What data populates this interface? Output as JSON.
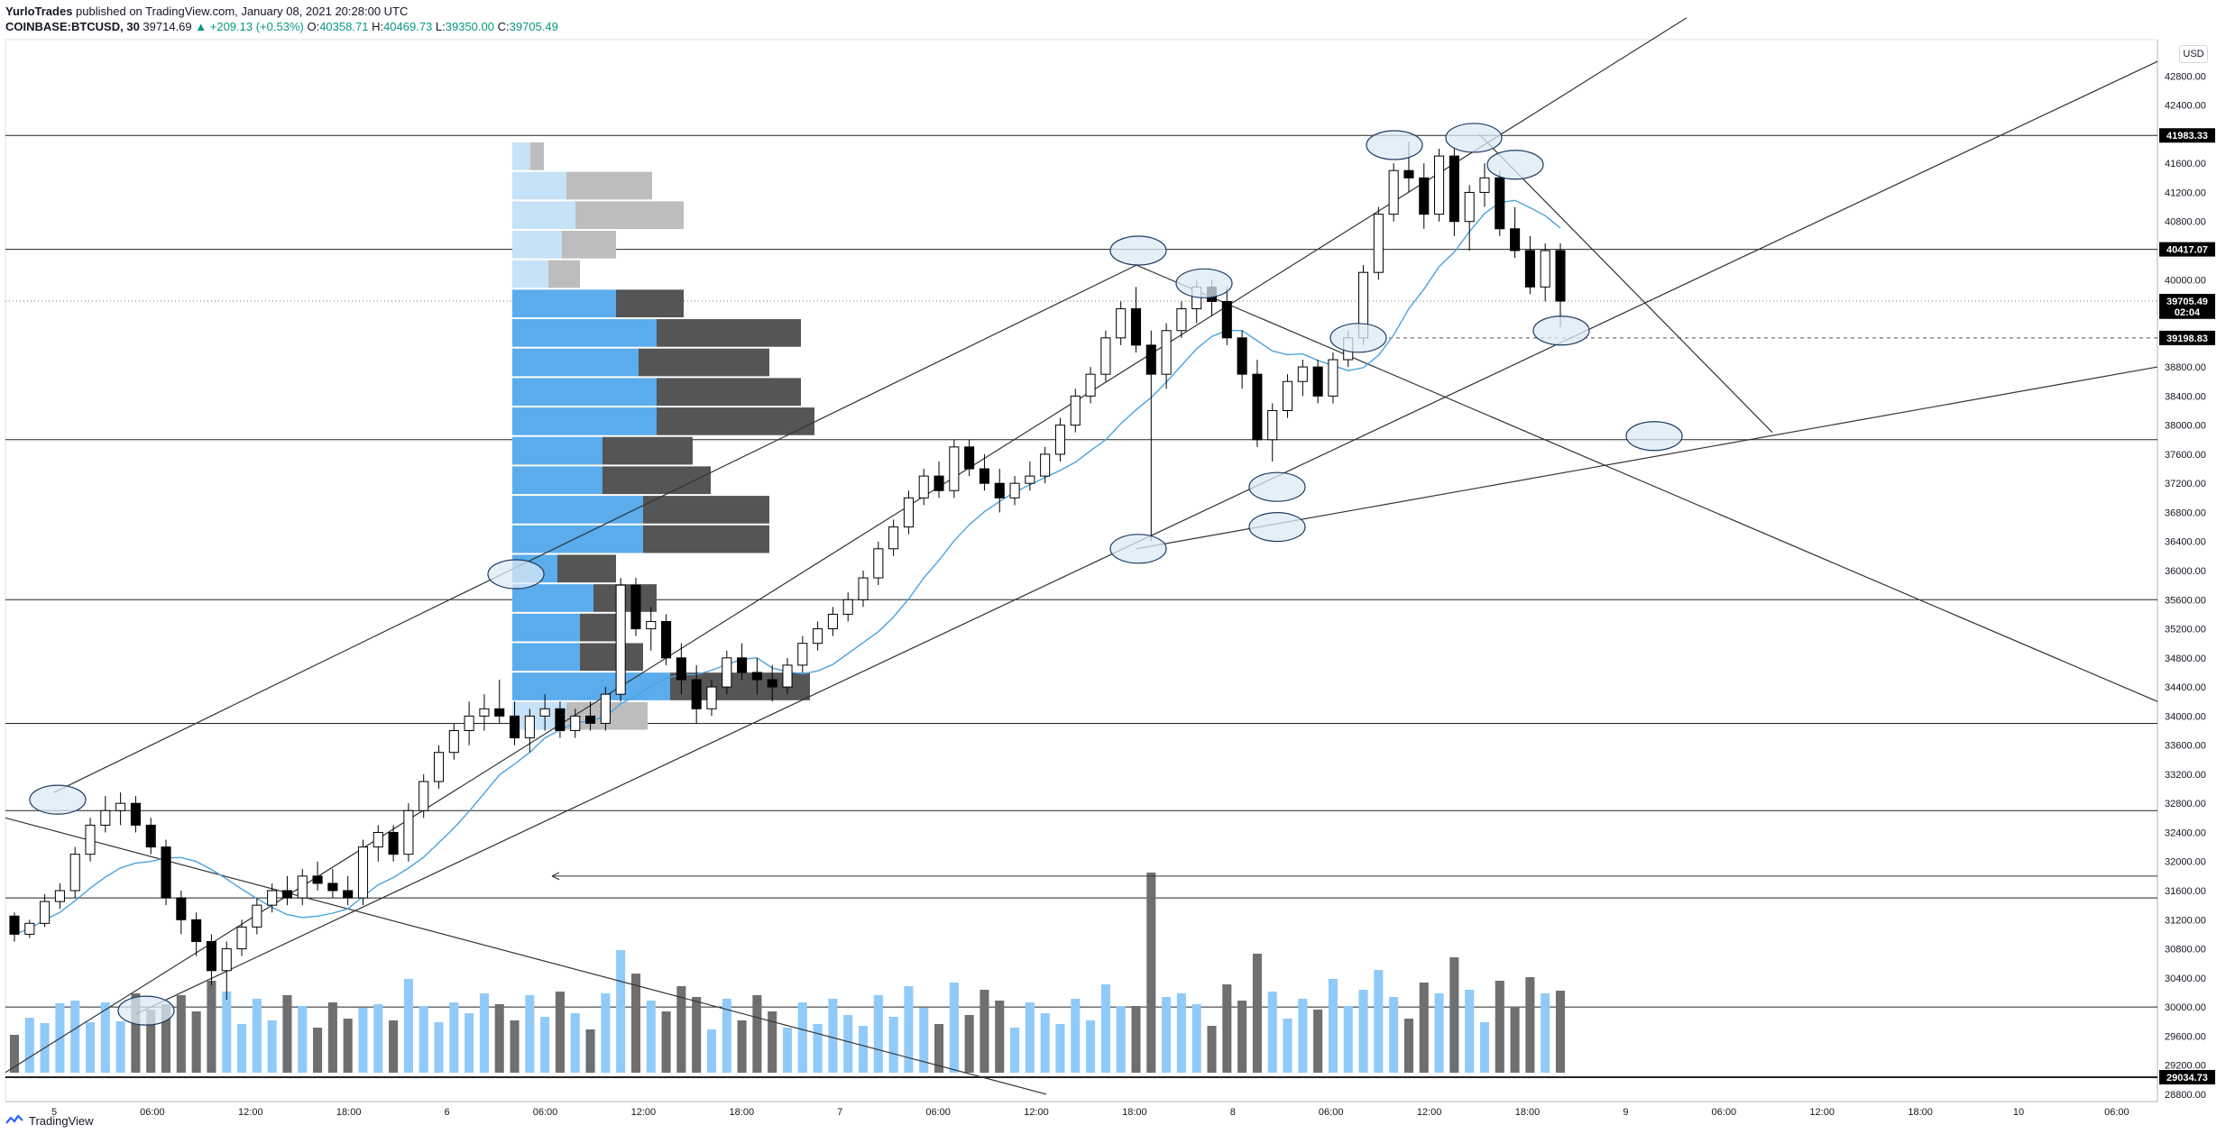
{
  "header": {
    "author": "YurloTrades",
    "published": "published on TradingView.com, January 08, 2021 20:28:00 UTC",
    "symbol": "COINBASE:BTCUSD, 30",
    "last": "39714.69",
    "change": "▲ +209.13 (+0.53%)",
    "o_label": "O:",
    "o": "40358.71",
    "h_label": "H:",
    "h": "40469.73",
    "l_label": "L:",
    "l": "39350.00",
    "c_label": "C:",
    "c": "39705.49"
  },
  "currency_button": "USD",
  "footer_brand": "TradingView",
  "colors": {
    "up_candle": "#ffffff",
    "down_candle": "#000000",
    "ma_line": "#4aa3df",
    "vol_up": "#90caf9",
    "vol_down": "#6f6f6f",
    "vp_up": "#5aacec",
    "vp_down": "#555555",
    "ellipse_fill": "#dbe9f6",
    "ellipse_stroke": "#1e3a5f"
  },
  "chart_data": {
    "type": "candlestick",
    "symbol": "COINBASE:BTCUSD",
    "interval": "30",
    "ylim": [
      28700,
      43300
    ],
    "y_ticks": [
      "42800.00",
      "42400.00",
      "41600.00",
      "41200.00",
      "40800.00",
      "40000.00",
      "38800.00",
      "38400.00",
      "38000.00",
      "37600.00",
      "37200.00",
      "36800.00",
      "36400.00",
      "36000.00",
      "35600.00",
      "35200.00",
      "34800.00",
      "34400.00",
      "34000.00",
      "33600.00",
      "33200.00",
      "32800.00",
      "32400.00",
      "32000.00",
      "31600.00",
      "31200.00",
      "30800.00",
      "30400.00",
      "30000.00",
      "29600.00",
      "29200.00",
      "28800.00"
    ],
    "x_ticks": [
      "5",
      "06:00",
      "12:00",
      "18:00",
      "6",
      "06:00",
      "12:00",
      "18:00",
      "7",
      "06:00",
      "12:00",
      "18:00",
      "8",
      "06:00",
      "12:00",
      "18:00",
      "9",
      "06:00",
      "12:00",
      "18:00",
      "10",
      "06:00"
    ],
    "price_badges": [
      {
        "label": "41983.33",
        "value": 41983.33,
        "style": "dark"
      },
      {
        "label": "40417.07",
        "value": 40417.07,
        "style": "dark"
      },
      {
        "label": "39705.49",
        "value": 39705.49,
        "style": "dark"
      },
      {
        "label": "02:04",
        "value": 39560,
        "style": "dark"
      },
      {
        "label": "39198.83",
        "value": 39198.83,
        "style": "dark"
      },
      {
        "label": "29034.73",
        "value": 29034.73,
        "style": "dark"
      }
    ],
    "horizontal_levels": [
      41983.33,
      40417.07,
      37800,
      35600,
      33900,
      32700,
      31500,
      30000,
      29034.73
    ],
    "dashed_levels": [
      39198.83
    ],
    "dotted_levels": [
      39705.49
    ],
    "candles": [
      [
        31250,
        31300,
        30900,
        31000
      ],
      [
        31000,
        31200,
        30950,
        31150
      ],
      [
        31150,
        31550,
        31100,
        31450
      ],
      [
        31450,
        31700,
        31350,
        31600
      ],
      [
        31600,
        32200,
        31500,
        32100
      ],
      [
        32100,
        32600,
        32000,
        32500
      ],
      [
        32500,
        32900,
        32400,
        32700
      ],
      [
        32700,
        32950,
        32500,
        32800
      ],
      [
        32800,
        32900,
        32400,
        32500
      ],
      [
        32500,
        32600,
        32100,
        32200
      ],
      [
        32200,
        32300,
        31400,
        31500
      ],
      [
        31500,
        31600,
        31000,
        31200
      ],
      [
        31200,
        31300,
        30700,
        30900
      ],
      [
        30900,
        31000,
        30300,
        30500
      ],
      [
        30500,
        30900,
        30100,
        30800
      ],
      [
        30800,
        31200,
        30700,
        31100
      ],
      [
        31100,
        31500,
        31000,
        31400
      ],
      [
        31400,
        31700,
        31300,
        31600
      ],
      [
        31600,
        31800,
        31400,
        31500
      ],
      [
        31500,
        31900,
        31400,
        31800
      ],
      [
        31800,
        32000,
        31600,
        31700
      ],
      [
        31700,
        31900,
        31500,
        31600
      ],
      [
        31600,
        31800,
        31400,
        31500
      ],
      [
        31500,
        32300,
        31400,
        32200
      ],
      [
        32200,
        32500,
        32000,
        32400
      ],
      [
        32400,
        32500,
        32000,
        32100
      ],
      [
        32100,
        32800,
        32000,
        32700
      ],
      [
        32700,
        33200,
        32600,
        33100
      ],
      [
        33100,
        33600,
        33000,
        33500
      ],
      [
        33500,
        33900,
        33400,
        33800
      ],
      [
        33800,
        34200,
        33600,
        34000
      ],
      [
        34000,
        34300,
        33800,
        34100
      ],
      [
        34100,
        34500,
        33900,
        34000
      ],
      [
        34000,
        34200,
        33600,
        33700
      ],
      [
        33700,
        34100,
        33500,
        34000
      ],
      [
        34000,
        34300,
        33800,
        34100
      ],
      [
        34100,
        34200,
        33700,
        33800
      ],
      [
        33800,
        34100,
        33700,
        34000
      ],
      [
        34000,
        34200,
        33800,
        33900
      ],
      [
        33900,
        34400,
        33800,
        34300
      ],
      [
        34300,
        35900,
        34200,
        35800
      ],
      [
        35800,
        35900,
        35100,
        35200
      ],
      [
        35200,
        35500,
        34900,
        35300
      ],
      [
        35300,
        35400,
        34700,
        34800
      ],
      [
        34800,
        35000,
        34300,
        34500
      ],
      [
        34500,
        34700,
        33900,
        34100
      ],
      [
        34100,
        34500,
        34000,
        34400
      ],
      [
        34400,
        34900,
        34300,
        34800
      ],
      [
        34800,
        35000,
        34500,
        34600
      ],
      [
        34600,
        34800,
        34300,
        34500
      ],
      [
        34500,
        34700,
        34200,
        34400
      ],
      [
        34400,
        34800,
        34300,
        34700
      ],
      [
        34700,
        35100,
        34600,
        35000
      ],
      [
        35000,
        35300,
        34900,
        35200
      ],
      [
        35200,
        35500,
        35100,
        35400
      ],
      [
        35400,
        35700,
        35300,
        35600
      ],
      [
        35600,
        36000,
        35500,
        35900
      ],
      [
        35900,
        36400,
        35800,
        36300
      ],
      [
        36300,
        36700,
        36200,
        36600
      ],
      [
        36600,
        37100,
        36500,
        37000
      ],
      [
        37000,
        37400,
        36900,
        37300
      ],
      [
        37300,
        37500,
        37000,
        37100
      ],
      [
        37100,
        37800,
        37000,
        37700
      ],
      [
        37700,
        37800,
        37300,
        37400
      ],
      [
        37400,
        37600,
        37100,
        37200
      ],
      [
        37200,
        37400,
        36800,
        37000
      ],
      [
        37000,
        37300,
        36900,
        37200
      ],
      [
        37200,
        37500,
        37100,
        37300
      ],
      [
        37300,
        37700,
        37200,
        37600
      ],
      [
        37600,
        38100,
        37500,
        38000
      ],
      [
        38000,
        38500,
        37900,
        38400
      ],
      [
        38400,
        38800,
        38300,
        38700
      ],
      [
        38700,
        39300,
        38600,
        39200
      ],
      [
        39200,
        39700,
        39100,
        39600
      ],
      [
        39600,
        39900,
        39000,
        39100
      ],
      [
        39100,
        39300,
        36400,
        38700
      ],
      [
        38700,
        39400,
        38500,
        39300
      ],
      [
        39300,
        39700,
        39200,
        39600
      ],
      [
        39600,
        40000,
        39400,
        39900
      ],
      [
        39900,
        40000,
        39500,
        39700
      ],
      [
        39700,
        39900,
        39100,
        39200
      ],
      [
        39200,
        39300,
        38500,
        38700
      ],
      [
        38700,
        38900,
        37700,
        37800
      ],
      [
        37800,
        38300,
        37500,
        38200
      ],
      [
        38200,
        38700,
        38100,
        38600
      ],
      [
        38600,
        38900,
        38400,
        38800
      ],
      [
        38800,
        38900,
        38300,
        38400
      ],
      [
        38400,
        39000,
        38300,
        38900
      ],
      [
        38900,
        39300,
        38800,
        39200
      ],
      [
        39200,
        40200,
        39100,
        40100
      ],
      [
        40100,
        41000,
        40000,
        40900
      ],
      [
        40900,
        41600,
        40800,
        41500
      ],
      [
        41500,
        41900,
        41200,
        41400
      ],
      [
        41400,
        41600,
        40700,
        40900
      ],
      [
        40900,
        41800,
        40800,
        41700
      ],
      [
        41700,
        41800,
        40600,
        40800
      ],
      [
        40800,
        41300,
        40400,
        41200
      ],
      [
        41200,
        41600,
        41000,
        41400
      ],
      [
        41400,
        41500,
        40600,
        40700
      ],
      [
        40700,
        41000,
        40300,
        40400
      ],
      [
        40400,
        40600,
        39800,
        39900
      ],
      [
        39900,
        40500,
        39700,
        40400
      ],
      [
        40400,
        40500,
        39350,
        39705
      ]
    ],
    "volume_profile_rows": 20
  }
}
